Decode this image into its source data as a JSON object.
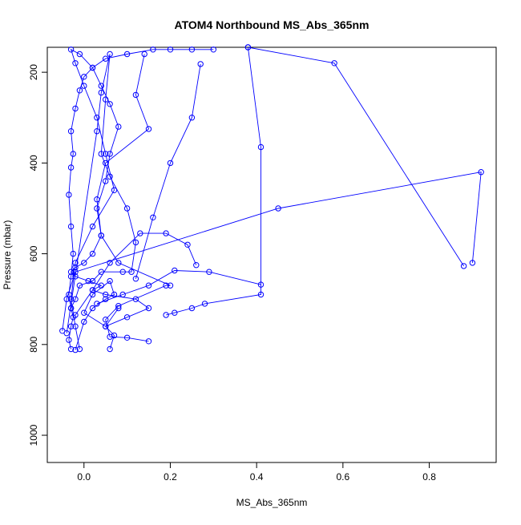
{
  "chart_data": {
    "type": "line",
    "title": "ATOM4 Northbound MS_Abs_365nm",
    "xlabel": "MS_Abs_365nm",
    "ylabel": "Pressure (mbar)",
    "xlim": [
      -0.085,
      0.955
    ],
    "ylim": [
      1060,
      145
    ],
    "y_reversed": true,
    "x_ticks": [
      {
        "value": 0.0,
        "label": "0.0"
      },
      {
        "value": 0.2,
        "label": "0.2"
      },
      {
        "value": 0.4,
        "label": "0.4"
      },
      {
        "value": 0.6,
        "label": "0.6"
      },
      {
        "value": 0.8,
        "label": "0.8"
      }
    ],
    "y_ticks": [
      {
        "value": 200,
        "label": "200"
      },
      {
        "value": 400,
        "label": "400"
      },
      {
        "value": 600,
        "label": "600"
      },
      {
        "value": 800,
        "label": "800"
      },
      {
        "value": 1000,
        "label": "1000"
      }
    ],
    "grid": false,
    "legend": "none",
    "series_color": "#0000ff",
    "series": [
      {
        "x": [
          0.06,
          0.07,
          0.05,
          0.1,
          0.15,
          0.12,
          0.05,
          0.02,
          0.04,
          0.01,
          -0.02,
          -0.03,
          -0.02,
          0.0,
          0.02,
          0.04,
          0.03,
          0.05,
          0.06,
          0.08,
          0.06,
          0.04,
          0.02,
          -0.01,
          -0.03,
          -0.02,
          0.0,
          0.03,
          0.05,
          0.07,
          0.02,
          -0.02,
          -0.03,
          -0.02,
          -0.01
        ],
        "y": [
          810,
          780,
          760,
          740,
          720,
          700,
          690,
          680,
          670,
          660,
          650,
          640,
          630,
          620,
          600,
          560,
          500,
          440,
          380,
          320,
          270,
          230,
          190,
          160,
          150,
          180,
          230,
          300,
          380,
          460,
          540,
          620,
          700,
          760,
          810
        ]
      },
      {
        "x": [
          0.15,
          0.1,
          0.06,
          0.05,
          0.08,
          0.19,
          0.2,
          0.08,
          0.04,
          0.03,
          0.05,
          0.15,
          0.12,
          0.14
        ],
        "y": [
          793,
          785,
          783,
          745,
          715,
          670,
          670,
          620,
          560,
          480,
          400,
          325,
          250,
          160
        ]
      },
      {
        "x": [
          -0.03,
          -0.035,
          -0.03,
          -0.025,
          -0.03,
          -0.035,
          -0.03,
          -0.025,
          -0.03,
          -0.035,
          -0.03,
          -0.025,
          -0.03,
          -0.02,
          -0.01,
          0.0,
          0.02,
          0.05,
          0.1,
          0.16,
          0.2,
          0.25,
          0.3
        ],
        "y": [
          810,
          790,
          760,
          740,
          720,
          690,
          650,
          600,
          540,
          470,
          410,
          380,
          330,
          280,
          240,
          210,
          190,
          170,
          160,
          150,
          150,
          150,
          150
        ]
      },
      {
        "x": [
          -0.03,
          -0.02,
          -0.01,
          0.02,
          0.04,
          0.09,
          0.11,
          0.12,
          0.1,
          0.06,
          0.04,
          0.05,
          0.06,
          0.04,
          0.03,
          -0.04
        ],
        "y": [
          720,
          700,
          670,
          660,
          640,
          640,
          640,
          575,
          500,
          430,
          380,
          260,
          160,
          245,
          330,
          775
        ]
      },
      {
        "x": [
          0.9,
          0.92,
          0.45,
          -0.02,
          -0.04,
          -0.05
        ],
        "y": [
          620,
          420,
          500,
          640,
          700,
          770
        ]
      },
      {
        "x": [
          0.88,
          0.58,
          0.38,
          0.38,
          0.41,
          0.41,
          0.28,
          0.25,
          0.21,
          0.19
        ],
        "y": [
          627,
          180,
          145,
          145,
          365,
          690,
          710,
          720,
          730,
          735
        ]
      },
      {
        "x": [
          0.26,
          0.24,
          0.19,
          0.13,
          0.06,
          0.02,
          -0.02
        ],
        "y": [
          625,
          580,
          555,
          555,
          620,
          680,
          735
        ]
      },
      {
        "x": [
          0.27,
          0.25,
          0.2,
          0.16,
          0.12
        ],
        "y": [
          182,
          300,
          400,
          520,
          655
        ]
      },
      {
        "x": [
          0.41,
          0.29,
          0.21,
          0.15,
          0.09,
          0.03
        ],
        "y": [
          668,
          640,
          637,
          670,
          690,
          710
        ]
      },
      {
        "x": [
          -0.02,
          0.0,
          0.02,
          0.05,
          0.07,
          0.06,
          0.02,
          0.0,
          0.05,
          0.08
        ],
        "y": [
          812,
          750,
          720,
          700,
          690,
          660,
          690,
          730,
          760,
          720
        ]
      }
    ]
  }
}
